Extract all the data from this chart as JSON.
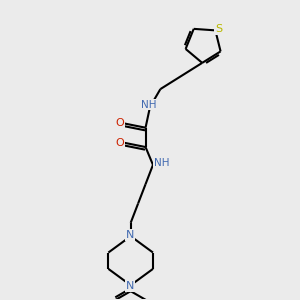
{
  "background_color": "#ebebeb",
  "bond_color": "#000000",
  "atom_colors": {
    "N": "#4169b0",
    "O": "#cc2200",
    "S": "#b8b800",
    "C": "#000000"
  },
  "figsize": [
    3.0,
    3.0
  ],
  "dpi": 100,
  "xlim": [
    0,
    10
  ],
  "ylim": [
    0,
    10
  ]
}
